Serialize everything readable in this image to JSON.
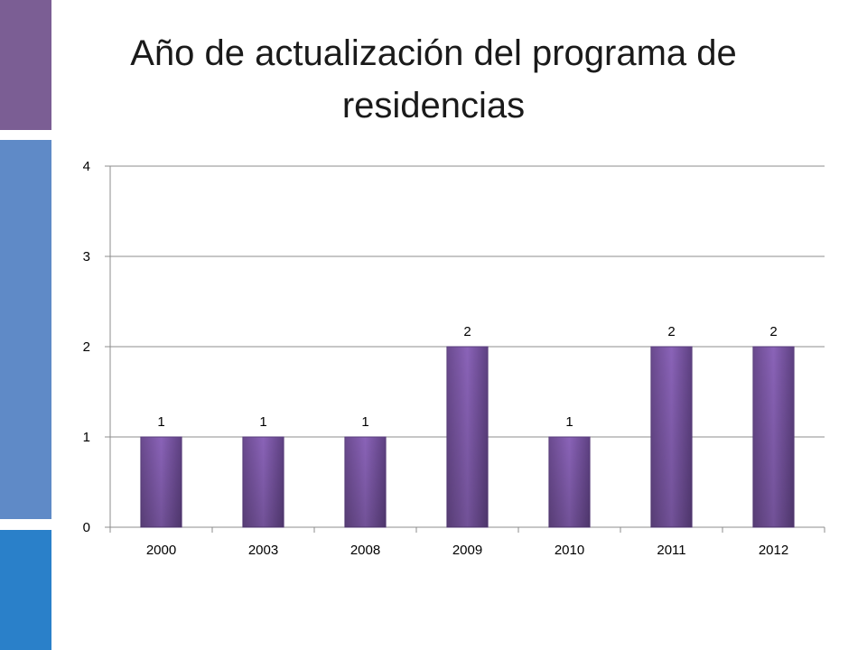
{
  "slide": {
    "title": "Año de actualización del programa de residencias",
    "accent_colors": [
      "#7b5e94",
      "#5f8ac7",
      "#2a80c9"
    ]
  },
  "chart_data": {
    "type": "bar",
    "title": "",
    "xlabel": "",
    "ylabel": "",
    "categories": [
      "2000",
      "2003",
      "2008",
      "2009",
      "2010",
      "2011",
      "2012"
    ],
    "values": [
      1,
      1,
      1,
      2,
      1,
      2,
      2
    ],
    "ylim": [
      0,
      4
    ],
    "yticks": [
      0,
      1,
      2,
      3,
      4
    ],
    "data_labels": true,
    "grid": "horizontal",
    "legend": "none",
    "bar_color": "#7f5aa8"
  }
}
